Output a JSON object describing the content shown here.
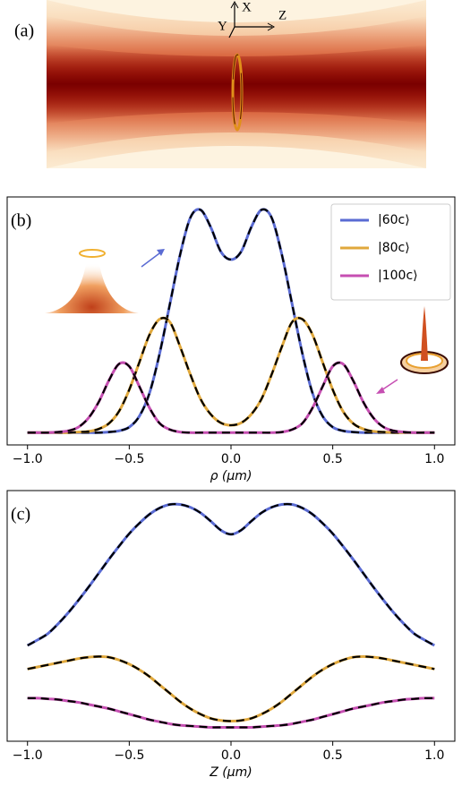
{
  "panel_a": {
    "label": "(a)",
    "axes": {
      "x": "X",
      "y": "Y",
      "z": "Z"
    }
  },
  "chart_data": [
    {
      "type": "line",
      "label": "(b)",
      "xlabel": "ρ (μm)",
      "x": [
        -1,
        -0.95,
        -0.9,
        -0.85,
        -0.8,
        -0.75,
        -0.7,
        -0.65,
        -0.6,
        -0.55,
        -0.5,
        -0.45,
        -0.4,
        -0.35,
        -0.3,
        -0.25,
        -0.2,
        -0.15,
        -0.1,
        -0.05,
        0,
        0.05,
        0.1,
        0.15,
        0.2,
        0.25,
        0.3,
        0.35,
        0.4,
        0.45,
        0.5,
        0.55,
        0.6,
        0.65,
        0.7,
        0.75,
        0.8,
        0.85,
        0.9,
        0.95,
        1
      ],
      "series": [
        {
          "name": "|60c⟩",
          "color": "#5a6bd3",
          "values": [
            0,
            0,
            0,
            0,
            0,
            0,
            0,
            0,
            0.01,
            0.03,
            0.09,
            0.27,
            0.65,
            1.3,
            2.1,
            2.9,
            3.5,
            3.63,
            3.35,
            2.95,
            2.82,
            2.95,
            3.35,
            3.63,
            3.5,
            2.9,
            2.1,
            1.3,
            0.65,
            0.27,
            0.09,
            0.03,
            0.01,
            0,
            0,
            0,
            0,
            0,
            0,
            0,
            0
          ]
        },
        {
          "name": "|80c⟩",
          "color": "#e0a83c",
          "values": [
            0,
            0,
            0,
            0,
            0,
            0.01,
            0.02,
            0.06,
            0.15,
            0.35,
            0.7,
            1.15,
            1.6,
            1.85,
            1.8,
            1.4,
            0.95,
            0.55,
            0.3,
            0.16,
            0.12,
            0.16,
            0.3,
            0.55,
            0.95,
            1.4,
            1.8,
            1.85,
            1.6,
            1.15,
            0.7,
            0.35,
            0.15,
            0.06,
            0.02,
            0.01,
            0,
            0,
            0,
            0,
            0
          ]
        },
        {
          "name": "|100c⟩",
          "color": "#c64fb2",
          "values": [
            0,
            0,
            0,
            0.01,
            0.03,
            0.09,
            0.24,
            0.5,
            0.85,
            1.12,
            1.08,
            0.75,
            0.4,
            0.15,
            0.05,
            0.01,
            0,
            0,
            0,
            0,
            0,
            0,
            0,
            0,
            0,
            0.01,
            0.05,
            0.15,
            0.4,
            0.75,
            1.08,
            1.12,
            0.85,
            0.5,
            0.24,
            0.09,
            0.03,
            0.01,
            0,
            0,
            0
          ]
        }
      ],
      "dashed_overlay": "#000000",
      "xlim": [
        -1.1,
        1.1
      ],
      "ylim": [
        -0.2,
        3.84
      ],
      "xticks": [
        {
          "value": -1,
          "label": "−1.0"
        },
        {
          "value": -0.5,
          "label": "−0.5"
        },
        {
          "value": 0,
          "label": "0.0"
        },
        {
          "value": 0.5,
          "label": "0.5"
        },
        {
          "value": 1,
          "label": "1.0"
        }
      ],
      "legend": "upper right"
    },
    {
      "type": "line",
      "label": "(c)",
      "xlabel": "Z (μm)",
      "x": [
        -1,
        -0.95,
        -0.9,
        -0.85,
        -0.8,
        -0.75,
        -0.7,
        -0.65,
        -0.6,
        -0.55,
        -0.5,
        -0.45,
        -0.4,
        -0.35,
        -0.3,
        -0.25,
        -0.2,
        -0.15,
        -0.1,
        -0.05,
        0,
        0.05,
        0.1,
        0.15,
        0.2,
        0.25,
        0.3,
        0.35,
        0.4,
        0.45,
        0.5,
        0.55,
        0.6,
        0.65,
        0.7,
        0.75,
        0.8,
        0.85,
        0.9,
        0.95,
        1
      ],
      "series": [
        {
          "color": "#5a6bd3",
          "values": [
            1.19,
            1.27,
            1.36,
            1.5,
            1.66,
            1.84,
            2.03,
            2.23,
            2.43,
            2.62,
            2.8,
            2.95,
            3.08,
            3.17,
            3.22,
            3.22,
            3.18,
            3.1,
            2.98,
            2.85,
            2.79,
            2.85,
            2.98,
            3.1,
            3.18,
            3.22,
            3.22,
            3.17,
            3.08,
            2.95,
            2.8,
            2.62,
            2.43,
            2.23,
            2.03,
            1.84,
            1.66,
            1.5,
            1.36,
            1.27,
            1.19
          ]
        },
        {
          "color": "#e0a83c",
          "values": [
            0.85,
            0.88,
            0.91,
            0.94,
            0.97,
            1.0,
            1.02,
            1.03,
            1.02,
            0.98,
            0.92,
            0.84,
            0.74,
            0.62,
            0.5,
            0.38,
            0.28,
            0.2,
            0.14,
            0.11,
            0.1,
            0.11,
            0.14,
            0.2,
            0.28,
            0.38,
            0.5,
            0.62,
            0.74,
            0.84,
            0.92,
            0.98,
            1.02,
            1.03,
            1.02,
            1.0,
            0.97,
            0.94,
            0.91,
            0.88,
            0.85
          ]
        },
        {
          "color": "#c64fb2",
          "values": [
            0.43,
            0.43,
            0.42,
            0.41,
            0.39,
            0.37,
            0.34,
            0.31,
            0.28,
            0.24,
            0.2,
            0.16,
            0.12,
            0.09,
            0.06,
            0.04,
            0.03,
            0.02,
            0.01,
            0.01,
            0.01,
            0.01,
            0.01,
            0.02,
            0.03,
            0.04,
            0.06,
            0.09,
            0.12,
            0.16,
            0.2,
            0.24,
            0.28,
            0.31,
            0.34,
            0.37,
            0.39,
            0.41,
            0.42,
            0.43,
            0.43
          ]
        }
      ],
      "dashed_overlay": "#000000",
      "xlim": [
        -1.1,
        1.1
      ],
      "ylim": [
        -0.19,
        3.42
      ],
      "xticks": [
        {
          "value": -1,
          "label": "−1.0"
        },
        {
          "value": -0.5,
          "label": "−0.5"
        },
        {
          "value": 0,
          "label": "0.0"
        },
        {
          "value": 0.5,
          "label": "0.5"
        },
        {
          "value": 1,
          "label": "1.0"
        }
      ]
    }
  ]
}
